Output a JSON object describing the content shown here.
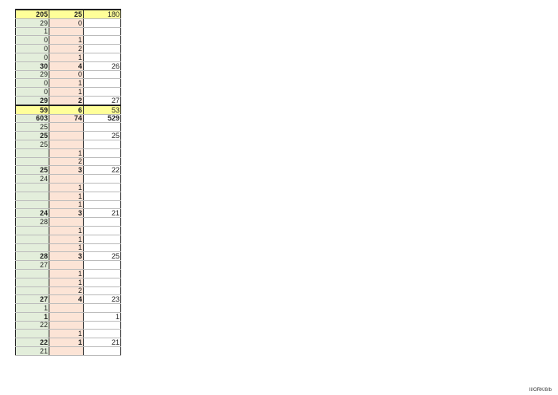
{
  "rows": [
    {
      "t": "yel",
      "v": [
        "205",
        "25",
        "180"
      ]
    },
    {
      "t": "n",
      "v": [
        "29",
        "0",
        ""
      ]
    },
    {
      "t": "tall",
      "v": [
        "1",
        "",
        ""
      ]
    },
    {
      "t": "n",
      "v": [
        "0",
        "1",
        ""
      ]
    },
    {
      "t": "n",
      "v": [
        "0",
        "2",
        ""
      ]
    },
    {
      "t": "n",
      "v": [
        "0",
        "1",
        ""
      ]
    },
    {
      "t": "sub",
      "v": [
        "30",
        "4",
        "26"
      ]
    },
    {
      "t": "n",
      "v": [
        "29",
        "0",
        ""
      ]
    },
    {
      "t": "n",
      "v": [
        "0",
        "1",
        ""
      ]
    },
    {
      "t": "n",
      "v": [
        "0",
        "1",
        ""
      ]
    },
    {
      "t": "sub",
      "v": [
        "29",
        "2",
        "27"
      ]
    },
    {
      "t": "yel",
      "v": [
        "59",
        "6",
        "53"
      ]
    },
    {
      "t": "big",
      "v": [
        "603",
        "74",
        "529"
      ]
    },
    {
      "t": "n",
      "v": [
        "25",
        "",
        ""
      ]
    },
    {
      "t": "sub",
      "v": [
        "25",
        "",
        "25"
      ]
    },
    {
      "t": "n",
      "v": [
        "25",
        "",
        ""
      ]
    },
    {
      "t": "n",
      "v": [
        "",
        "1",
        ""
      ]
    },
    {
      "t": "n",
      "v": [
        "",
        "2",
        ""
      ]
    },
    {
      "t": "sub",
      "v": [
        "25",
        "3",
        "22"
      ]
    },
    {
      "t": "n",
      "v": [
        "24",
        "",
        ""
      ]
    },
    {
      "t": "n",
      "v": [
        "",
        "1",
        ""
      ]
    },
    {
      "t": "n",
      "v": [
        "",
        "1",
        ""
      ]
    },
    {
      "t": "n",
      "v": [
        "",
        "1",
        ""
      ]
    },
    {
      "t": "sub",
      "v": [
        "24",
        "3",
        "21"
      ]
    },
    {
      "t": "n",
      "v": [
        "28",
        "",
        ""
      ]
    },
    {
      "t": "n",
      "v": [
        "",
        "1",
        ""
      ]
    },
    {
      "t": "n",
      "v": [
        "",
        "1",
        ""
      ]
    },
    {
      "t": "n",
      "v": [
        "",
        "1",
        ""
      ]
    },
    {
      "t": "sub",
      "v": [
        "28",
        "3",
        "25"
      ]
    },
    {
      "t": "n",
      "v": [
        "27",
        "",
        ""
      ]
    },
    {
      "t": "n",
      "v": [
        "",
        "1",
        ""
      ]
    },
    {
      "t": "n",
      "v": [
        "",
        "1",
        ""
      ]
    },
    {
      "t": "n",
      "v": [
        "",
        "2",
        ""
      ]
    },
    {
      "t": "sub",
      "v": [
        "27",
        "4",
        "23"
      ]
    },
    {
      "t": "n",
      "v": [
        "1",
        "",
        ""
      ]
    },
    {
      "t": "sub",
      "v": [
        "1",
        "",
        "1"
      ]
    },
    {
      "t": "n",
      "v": [
        "22",
        "",
        ""
      ]
    },
    {
      "t": "n",
      "v": [
        "",
        "1",
        ""
      ]
    },
    {
      "t": "sub",
      "v": [
        "22",
        "1",
        "21"
      ]
    },
    {
      "t": "last",
      "v": [
        "21",
        "",
        ""
      ]
    }
  ],
  "footer": "II/ORK/8/b"
}
